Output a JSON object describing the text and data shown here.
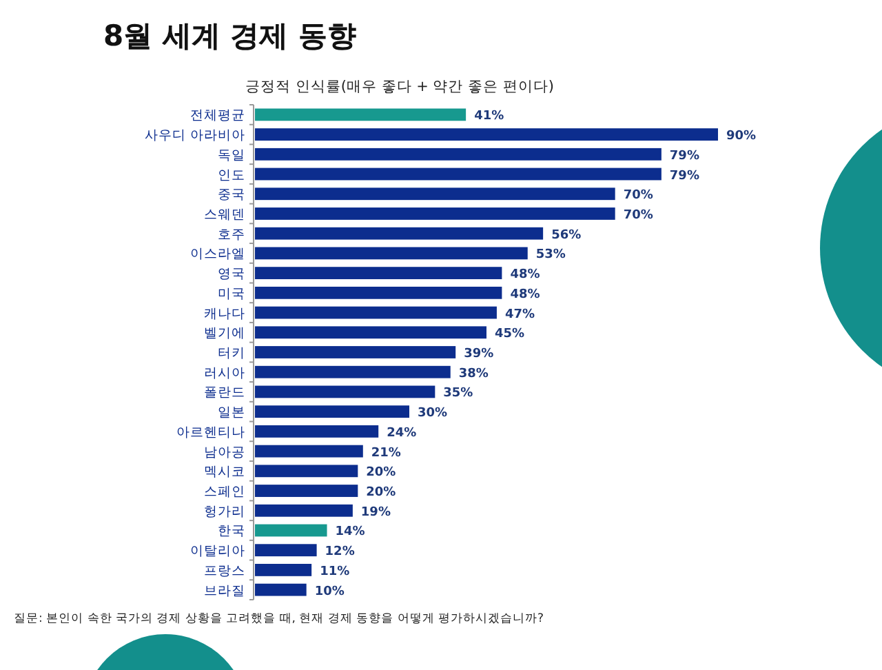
{
  "chart_data": {
    "type": "bar",
    "orientation": "horizontal",
    "title": "8월 세계 경제 동향",
    "subtitle": "긍정적 인식률(매우 좋다 + 약간 좋은 편이다)",
    "categories": [
      "전체평균",
      "사우디 아라비아",
      "독일",
      "인도",
      "중국",
      "스웨덴",
      "호주",
      "이스라엘",
      "영국",
      "미국",
      "캐나다",
      "벨기에",
      "터키",
      "러시아",
      "폴란드",
      "일본",
      "아르헨티나",
      "남아공",
      "멕시코",
      "스페인",
      "헝가리",
      "한국",
      "이탈리아",
      "프랑스",
      "브라질"
    ],
    "values": [
      41,
      90,
      79,
      79,
      70,
      70,
      56,
      53,
      48,
      48,
      47,
      45,
      39,
      38,
      35,
      30,
      24,
      21,
      20,
      20,
      19,
      14,
      12,
      11,
      10
    ],
    "colors": [
      "#17998f",
      "#0c2d8e",
      "#0c2d8e",
      "#0c2d8e",
      "#0c2d8e",
      "#0c2d8e",
      "#0c2d8e",
      "#0c2d8e",
      "#0c2d8e",
      "#0c2d8e",
      "#0c2d8e",
      "#0c2d8e",
      "#0c2d8e",
      "#0c2d8e",
      "#0c2d8e",
      "#0c2d8e",
      "#0c2d8e",
      "#0c2d8e",
      "#0c2d8e",
      "#0c2d8e",
      "#0c2d8e",
      "#17998f",
      "#0c2d8e",
      "#0c2d8e",
      "#0c2d8e"
    ],
    "value_labels": [
      "41%",
      "90%",
      "79%",
      "79%",
      "70%",
      "70%",
      "56%",
      "53%",
      "48%",
      "48%",
      "47%",
      "45%",
      "39%",
      "38%",
      "35%",
      "30%",
      "24%",
      "21%",
      "20%",
      "20%",
      "19%",
      "14%",
      "12%",
      "11%",
      "10%"
    ],
    "annotations": [
      "질문: 본인이 속한 국가의 경제 상황을 고려했을 때, 현재 경제 동향을 어떻게 평가하시겠습니까?"
    ]
  }
}
